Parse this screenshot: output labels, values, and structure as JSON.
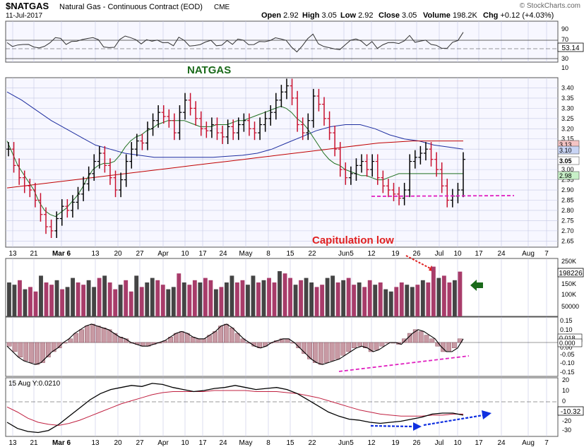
{
  "header": {
    "symbol": "$NATGAS",
    "name": "Natural Gas - Continuous Contract (EOD)",
    "exchange": "CME",
    "date": "11-Jul-2017",
    "brand": "© StockCharts.com",
    "ohlc": [
      {
        "label": "Open",
        "value": "2.92"
      },
      {
        "label": "High",
        "value": "3.05"
      },
      {
        "label": "Low",
        "value": "2.92"
      },
      {
        "label": "Close",
        "value": "3.05"
      },
      {
        "label": "Volume",
        "value": "198.2K"
      },
      {
        "label": "Chg",
        "value": "+0.12 (+4.03%)"
      }
    ]
  },
  "annotations": {
    "natgas_label": "NATGAS",
    "capitulation": "Capitulation low",
    "macd_legend": "15 Aug Y:0.0210"
  },
  "chart_data": {
    "type": "ohlc",
    "x_tick_labels": [
      "13",
      "21",
      "Mar 6",
      "13",
      "20",
      "27",
      "Apr",
      "10",
      "17",
      "24",
      "May",
      "8",
      "15",
      "22",
      "Jun",
      "5",
      "12",
      "19",
      "26",
      "Jul",
      "10",
      "17",
      "24",
      "Aug",
      "7"
    ],
    "price_axis": {
      "ticks": [
        "3.40",
        "3.35",
        "3.30",
        "3.25",
        "3.20",
        "3.15",
        "3.10",
        "3.05",
        "3.00",
        "2.95",
        "2.90",
        "2.85",
        "2.80",
        "2.75",
        "2.70",
        "2.65"
      ],
      "range": [
        2.62,
        3.45
      ]
    },
    "price_badges": [
      "3.13",
      "3.10",
      "3.05",
      "2.98"
    ],
    "close": [
      3.1,
      3.02,
      2.96,
      2.92,
      2.9,
      2.85,
      2.78,
      2.72,
      2.7,
      2.76,
      2.82,
      2.8,
      2.84,
      2.88,
      2.93,
      2.98,
      3.04,
      3.08,
      3.02,
      2.96,
      2.9,
      2.95,
      3.04,
      3.1,
      3.14,
      3.13,
      3.2,
      3.24,
      3.28,
      3.26,
      3.24,
      3.18,
      3.28,
      3.34,
      3.3,
      3.25,
      3.2,
      3.19,
      3.22,
      3.18,
      3.16,
      3.21,
      3.18,
      3.22,
      3.24,
      3.2,
      3.18,
      3.22,
      3.25,
      3.28,
      3.34,
      3.38,
      3.41,
      3.35,
      3.22,
      3.18,
      3.24,
      3.36,
      3.32,
      3.25,
      3.18,
      3.1,
      3.0,
      2.96,
      2.98,
      3.02,
      3.04,
      3.0,
      3.04,
      2.96,
      2.92,
      2.9,
      2.88,
      2.86,
      2.9,
      3.04,
      3.06,
      3.08,
      3.1,
      3.05,
      3.0,
      2.92,
      2.85,
      2.87,
      2.9,
      3.05
    ],
    "ma_short": [
      3.14,
      3.08,
      3.02,
      2.98,
      2.94,
      2.9,
      2.84,
      2.8,
      2.78,
      2.77,
      2.79,
      2.81,
      2.84,
      2.87,
      2.91,
      2.96,
      3.0,
      3.02,
      3.03,
      3.03,
      3.04,
      3.07,
      3.11,
      3.14,
      3.16,
      3.17,
      3.19,
      3.2,
      3.22,
      3.23,
      3.24,
      3.24,
      3.24,
      3.24,
      3.23,
      3.22,
      3.21,
      3.21,
      3.21,
      3.22,
      3.22,
      3.22,
      3.23,
      3.24,
      3.24,
      3.25,
      3.26,
      3.27,
      3.28,
      3.29,
      3.3,
      3.31,
      3.3,
      3.28,
      3.25,
      3.23,
      3.2,
      3.16,
      3.12,
      3.08,
      3.05,
      3.03,
      3.02,
      3.0,
      2.99,
      2.98,
      2.97,
      2.97,
      2.96,
      2.95,
      2.95,
      2.96,
      2.97,
      2.98,
      2.98,
      2.98,
      2.98,
      2.98,
      2.98,
      2.98,
      2.98,
      2.98,
      2.98,
      2.98,
      2.98,
      2.98
    ],
    "ma_long": [
      2.91,
      2.92,
      2.93,
      2.94,
      2.95,
      2.96,
      2.97,
      2.98,
      2.99,
      3.0,
      3.01,
      3.02,
      3.03,
      3.04,
      3.05,
      3.06,
      3.07,
      3.08,
      3.09,
      3.1,
      3.11,
      3.12,
      3.13,
      3.135,
      3.14,
      3.14,
      3.14,
      3.14
    ],
    "ma_mid": [
      3.38,
      3.34,
      3.29,
      3.24,
      3.2,
      3.16,
      3.12,
      3.1,
      3.08,
      3.07,
      3.06,
      3.06,
      3.06,
      3.06,
      3.06,
      3.065,
      3.07,
      3.08,
      3.1,
      3.13,
      3.16,
      3.19,
      3.21,
      3.22,
      3.22,
      3.2,
      3.17,
      3.15,
      3.14,
      3.12,
      3.11,
      3.1
    ],
    "rsi_axis": [
      "90",
      "70",
      "50",
      "30",
      "10"
    ],
    "rsi_badge": "53.14",
    "volume_axis": [
      "250K",
      "200K",
      "150K",
      "100K",
      "50000"
    ],
    "volume_badge": "198226",
    "volume": [
      150,
      140,
      160,
      120,
      130,
      110,
      180,
      150,
      140,
      160,
      120,
      130,
      170,
      150,
      140,
      160,
      130,
      170,
      180,
      150,
      120,
      140,
      160,
      110,
      180,
      130,
      150,
      170,
      160,
      140,
      120,
      130,
      190,
      150,
      140,
      160,
      150,
      170,
      160,
      120,
      130,
      150,
      180,
      150,
      160,
      140,
      180,
      150,
      160,
      170,
      150,
      200,
      190,
      170,
      140,
      160,
      170,
      150,
      130,
      140,
      170,
      180,
      150,
      160,
      170,
      140,
      150,
      130,
      160,
      140,
      150,
      120,
      110,
      130,
      150,
      140,
      130,
      140,
      160,
      150,
      220,
      170,
      180,
      150,
      160,
      198
    ],
    "ppo_axis": [
      "0.15",
      "0.10",
      "0.05",
      "0.00",
      "-0.05",
      "-0.10",
      "-0.15"
    ],
    "ppo_badges": [
      "0.018",
      "0.000"
    ],
    "ppo": [
      -0.02,
      -0.05,
      -0.08,
      -0.1,
      -0.11,
      -0.12,
      -0.11,
      -0.08,
      -0.05,
      -0.03,
      0.0,
      0.02,
      0.05,
      0.07,
      0.09,
      0.1,
      0.09,
      0.08,
      0.07,
      0.05,
      0.03,
      0.02,
      0.0,
      -0.01,
      -0.02,
      -0.02,
      -0.01,
      0.0,
      0.01,
      0.03,
      0.05,
      0.06,
      0.05,
      0.03,
      0.02,
      0.02,
      0.04,
      0.06,
      0.09,
      0.1,
      0.08,
      0.05,
      0.02,
      0.0,
      -0.02,
      -0.03,
      -0.02,
      0.0,
      0.01,
      0.02,
      0.02,
      0.0,
      -0.03,
      -0.06,
      -0.09,
      -0.11,
      -0.12,
      -0.11,
      -0.1,
      -0.09,
      -0.07,
      -0.05,
      -0.03,
      -0.02,
      -0.03,
      -0.05,
      -0.04,
      -0.02,
      0.0,
      0.0,
      -0.01,
      0.02,
      0.05,
      0.07,
      0.06,
      0.04,
      0.02,
      -0.02,
      -0.05,
      -0.05,
      -0.03,
      0.02
    ],
    "macd_axis": [
      "20",
      "10",
      "0",
      "-10",
      "-20",
      "-30"
    ],
    "macd_badge": "-10.32",
    "macd": [
      -20,
      -26,
      -29,
      -30,
      -28,
      -22,
      -14,
      -6,
      2,
      8,
      12,
      14,
      16,
      15,
      18,
      17,
      14,
      12,
      10,
      11,
      13,
      14,
      16,
      14,
      12,
      13,
      14,
      12,
      8,
      2,
      -4,
      -10,
      -14,
      -17,
      -18,
      -20,
      -21,
      -20,
      -19,
      -17,
      -15,
      -12,
      -11,
      -11,
      -13
    ],
    "macd_signal": [
      -5,
      -10,
      -16,
      -20,
      -22,
      -23,
      -21,
      -18,
      -14,
      -10,
      -6,
      -2,
      1,
      4,
      7,
      9,
      10,
      10,
      10,
      10,
      11,
      11,
      11,
      11,
      10,
      10,
      10,
      9,
      8,
      6,
      4,
      1,
      -2,
      -5,
      -8,
      -10,
      -12,
      -13,
      -14,
      -14,
      -14,
      -13,
      -13,
      -12,
      -12
    ]
  }
}
